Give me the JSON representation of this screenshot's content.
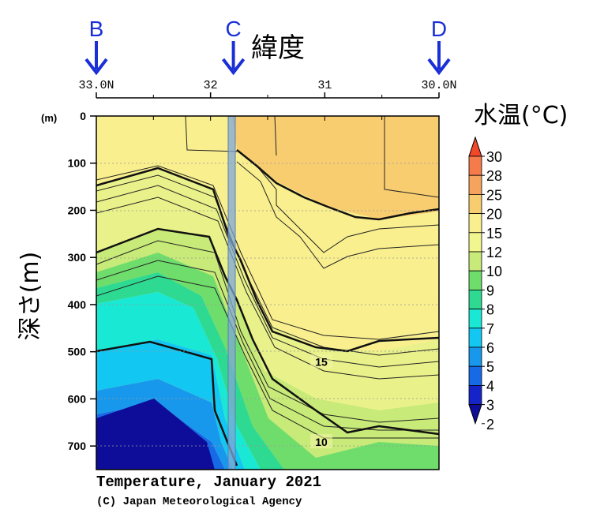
{
  "chart_data": {
    "type": "heatmap",
    "title": "Temperature, January 2021",
    "credit": "(C) Japan Meteorological Agency",
    "xlabel": "緯度",
    "ylabel": "深さ(m)",
    "y_unit_label": "(m)",
    "x_ticks": [
      "33.0N",
      "32",
      "31",
      "30.0N"
    ],
    "x_tick_values": [
      33.0,
      32,
      31,
      30.0
    ],
    "y_ticks": [
      "0",
      "100",
      "200",
      "300",
      "400",
      "500",
      "600",
      "700"
    ],
    "y_tick_values": [
      0,
      100,
      200,
      300,
      400,
      500,
      600,
      700
    ],
    "xlim": [
      33.0,
      30.0
    ],
    "ylim": [
      0,
      750
    ],
    "markers": [
      {
        "label": "B",
        "lat": 33.0
      },
      {
        "label": "C",
        "lat": 31.8
      },
      {
        "label": "D",
        "lat": 30.0
      }
    ],
    "highlight_band_lat": 31.82,
    "legend": {
      "title": "水温(°C)",
      "levels": [
        30,
        28,
        25,
        20,
        15,
        12,
        10,
        9,
        8,
        7,
        6,
        5,
        4,
        3,
        2
      ],
      "labels": [
        "30",
        "28",
        "25",
        "20",
        "15",
        "12",
        "10",
        "9",
        "8",
        "7",
        "6",
        "5",
        "4",
        "3",
        "2"
      ],
      "colors": [
        "#f2482a",
        "#f57b4b",
        "#f6a35e",
        "#f8cd70",
        "#f9ef8e",
        "#f2f68e",
        "#c7ea78",
        "#6fdd6c",
        "#2ed991",
        "#19e8d4",
        "#12c8f2",
        "#1898ec",
        "#176ae6",
        "#1524c8",
        "#0d0d9a"
      ]
    },
    "contour_labels": [
      {
        "text": "15",
        "lat": 31.03,
        "depth": 525
      },
      {
        "text": "10",
        "lat": 31.03,
        "depth": 695
      }
    ],
    "isotherms": [
      {
        "temp": 20,
        "bold": true,
        "points": [
          [
            33.0,
            0
          ],
          [
            32.0,
            0
          ],
          [
            31.9,
            80
          ],
          [
            31.7,
            110
          ],
          [
            31.4,
            160
          ],
          [
            31.1,
            220
          ],
          [
            30.8,
            240
          ],
          [
            30.4,
            225
          ],
          [
            30.0,
            200
          ]
        ]
      },
      {
        "temp": 15,
        "bold": true,
        "points": [
          [
            33.0,
            150
          ],
          [
            32.5,
            120
          ],
          [
            32.2,
            180
          ],
          [
            32.0,
            270
          ],
          [
            31.8,
            420
          ],
          [
            31.6,
            450
          ],
          [
            31.2,
            470
          ],
          [
            30.8,
            505
          ],
          [
            30.4,
            470
          ],
          [
            30.0,
            470
          ]
        ]
      },
      {
        "temp": 12,
        "bold": true,
        "points": [
          [
            33.0,
            300
          ],
          [
            32.5,
            270
          ],
          [
            32.2,
            330
          ],
          [
            32.0,
            400
          ],
          [
            31.8,
            540
          ],
          [
            31.6,
            600
          ],
          [
            31.2,
            655
          ],
          [
            30.8,
            665
          ],
          [
            30.4,
            655
          ],
          [
            30.0,
            680
          ]
        ]
      },
      {
        "temp": 7,
        "bold": true,
        "points": [
          [
            33.0,
            500
          ],
          [
            32.5,
            480
          ],
          [
            32.05,
            500
          ],
          [
            32.0,
            560
          ],
          [
            31.85,
            700
          ],
          [
            31.75,
            750
          ]
        ]
      },
      {
        "temp": 5,
        "bold": false,
        "points": [
          [
            33.0,
            650
          ],
          [
            32.5,
            600
          ],
          [
            32.1,
            700
          ],
          [
            31.95,
            750
          ]
        ]
      }
    ]
  }
}
